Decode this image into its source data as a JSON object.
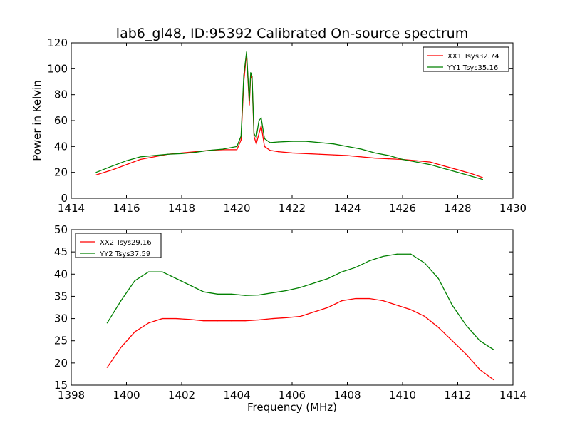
{
  "chart_data": [
    {
      "type": "line",
      "title": "lab6_gl48, ID:95392 Calibrated On-source spectrum",
      "xlabel": "",
      "ylabel": "Power in Kelvin",
      "xlim": [
        1414,
        1430
      ],
      "ylim": [
        0,
        120
      ],
      "xticks": [
        "1414",
        "1416",
        "1418",
        "1420",
        "1422",
        "1424",
        "1426",
        "1428",
        "1430"
      ],
      "yticks": [
        "0",
        "20",
        "40",
        "60",
        "80",
        "100",
        "120"
      ],
      "legend_position": "top-right",
      "grid": false,
      "series": [
        {
          "name": "XX1 Tsys32.74",
          "color": "#ff0000",
          "x": [
            1414.9,
            1415.5,
            1416.0,
            1416.5,
            1417.0,
            1417.5,
            1418.0,
            1418.5,
            1419.0,
            1419.5,
            1420.0,
            1420.15,
            1420.25,
            1420.35,
            1420.45,
            1420.5,
            1420.55,
            1420.62,
            1420.7,
            1420.8,
            1420.88,
            1421.0,
            1421.2,
            1421.5,
            1422.0,
            1422.5,
            1423.0,
            1423.5,
            1424.0,
            1424.5,
            1425.0,
            1425.5,
            1426.0,
            1426.5,
            1427.0,
            1427.5,
            1428.0,
            1428.5,
            1428.9
          ],
          "y": [
            18,
            22,
            26,
            30,
            32,
            34,
            35,
            36,
            37,
            37.5,
            37.5,
            45,
            90,
            112,
            72,
            95,
            92,
            48,
            42,
            50,
            56,
            40,
            37,
            36,
            35,
            34.5,
            34,
            33.5,
            33,
            32,
            31,
            30.5,
            30,
            29,
            28,
            25,
            22,
            19,
            16
          ]
        },
        {
          "name": "YY1 Tsys35.16",
          "color": "#008000",
          "x": [
            1414.9,
            1415.5,
            1416.0,
            1416.5,
            1417.0,
            1417.5,
            1418.0,
            1418.5,
            1419.0,
            1419.5,
            1420.0,
            1420.15,
            1420.25,
            1420.35,
            1420.45,
            1420.5,
            1420.55,
            1420.62,
            1420.7,
            1420.8,
            1420.88,
            1421.0,
            1421.2,
            1421.5,
            1422.0,
            1422.5,
            1423.0,
            1423.5,
            1424.0,
            1424.5,
            1425.0,
            1425.5,
            1426.0,
            1426.5,
            1427.0,
            1427.5,
            1428.0,
            1428.5,
            1428.9
          ],
          "y": [
            20,
            25,
            29,
            32,
            33,
            34,
            34.5,
            35.5,
            37,
            38,
            40,
            48,
            95,
            113,
            75,
            97,
            94,
            50,
            47,
            60,
            62,
            46,
            43,
            43.5,
            44,
            44,
            43,
            42,
            40,
            38,
            35,
            33,
            30,
            28,
            26,
            23,
            20,
            17,
            14.5
          ]
        }
      ]
    },
    {
      "type": "line",
      "title": "",
      "xlabel": "Frequency (MHz)",
      "ylabel": "",
      "xlim": [
        1398,
        1414
      ],
      "ylim": [
        15,
        50
      ],
      "xticks": [
        "1398",
        "1400",
        "1402",
        "1404",
        "1406",
        "1408",
        "1410",
        "1412",
        "1414"
      ],
      "yticks": [
        "15",
        "20",
        "25",
        "30",
        "35",
        "40",
        "45",
        "50"
      ],
      "legend_position": "top-left",
      "grid": false,
      "series": [
        {
          "name": "XX2 Tsys29.16",
          "color": "#ff0000",
          "x": [
            1399.3,
            1399.8,
            1400.3,
            1400.8,
            1401.3,
            1401.8,
            1402.3,
            1402.8,
            1403.3,
            1403.8,
            1404.3,
            1404.8,
            1405.3,
            1405.8,
            1406.3,
            1406.8,
            1407.3,
            1407.8,
            1408.3,
            1408.8,
            1409.3,
            1409.8,
            1410.3,
            1410.8,
            1411.3,
            1411.8,
            1412.3,
            1412.8,
            1413.3
          ],
          "y": [
            19,
            23.5,
            27,
            29,
            30,
            30,
            29.8,
            29.5,
            29.5,
            29.5,
            29.5,
            29.7,
            30,
            30.2,
            30.5,
            31.5,
            32.5,
            34,
            34.5,
            34.5,
            34,
            33,
            32,
            30.5,
            28,
            25,
            22,
            18.5,
            16.2
          ]
        },
        {
          "name": "YY2 Tsys37.59",
          "color": "#008000",
          "x": [
            1399.3,
            1399.8,
            1400.3,
            1400.8,
            1401.3,
            1401.8,
            1402.3,
            1402.8,
            1403.3,
            1403.8,
            1404.3,
            1404.8,
            1405.3,
            1405.8,
            1406.3,
            1406.8,
            1407.3,
            1407.8,
            1408.3,
            1408.8,
            1409.3,
            1409.8,
            1410.3,
            1410.8,
            1411.3,
            1411.8,
            1412.3,
            1412.8,
            1413.3
          ],
          "y": [
            29,
            34,
            38.5,
            40.5,
            40.5,
            39,
            37.5,
            36,
            35.5,
            35.5,
            35.2,
            35.3,
            35.8,
            36.3,
            37,
            38,
            39,
            40.5,
            41.5,
            43,
            44,
            44.5,
            44.5,
            42.5,
            39,
            33,
            28.5,
            25,
            23
          ]
        }
      ]
    }
  ]
}
